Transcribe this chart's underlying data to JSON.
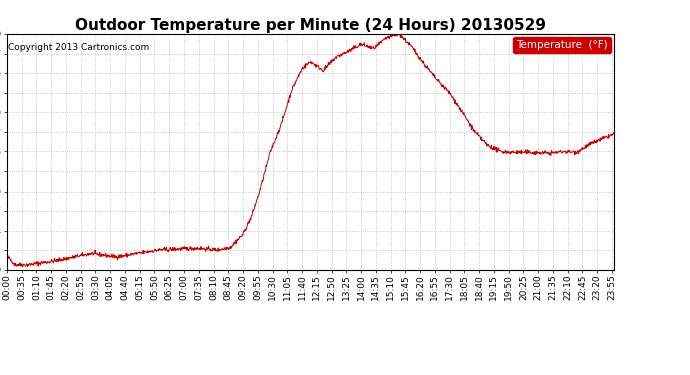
{
  "title": "Outdoor Temperature per Minute (24 Hours) 20130529",
  "copyright_text": "Copyright 2013 Cartronics.com",
  "legend_label": "Temperature  (°F)",
  "line_color": "#cc0000",
  "background_color": "#ffffff",
  "grid_color": "#bbbbbb",
  "legend_bg": "#cc0000",
  "legend_text_color": "#ffffff",
  "ylim": [
    55.9,
    83.0
  ],
  "yticks": [
    55.9,
    58.2,
    60.4,
    62.7,
    64.9,
    67.2,
    69.5,
    71.7,
    74.0,
    76.2,
    78.5,
    80.7,
    83.0
  ],
  "x_tick_labels": [
    "00:00",
    "00:35",
    "01:10",
    "01:45",
    "02:20",
    "02:55",
    "03:30",
    "04:05",
    "04:40",
    "05:15",
    "05:50",
    "06:25",
    "07:00",
    "07:35",
    "08:10",
    "08:45",
    "09:20",
    "09:55",
    "10:30",
    "11:05",
    "11:40",
    "12:15",
    "12:50",
    "13:25",
    "14:00",
    "14:35",
    "15:10",
    "15:45",
    "16:20",
    "16:55",
    "17:30",
    "18:05",
    "18:40",
    "19:15",
    "19:50",
    "20:25",
    "21:00",
    "21:35",
    "22:10",
    "22:45",
    "23:20",
    "23:55"
  ],
  "title_fontsize": 11,
  "axis_fontsize": 6.5,
  "copyright_fontsize": 6.5,
  "legend_fontsize": 7.5
}
